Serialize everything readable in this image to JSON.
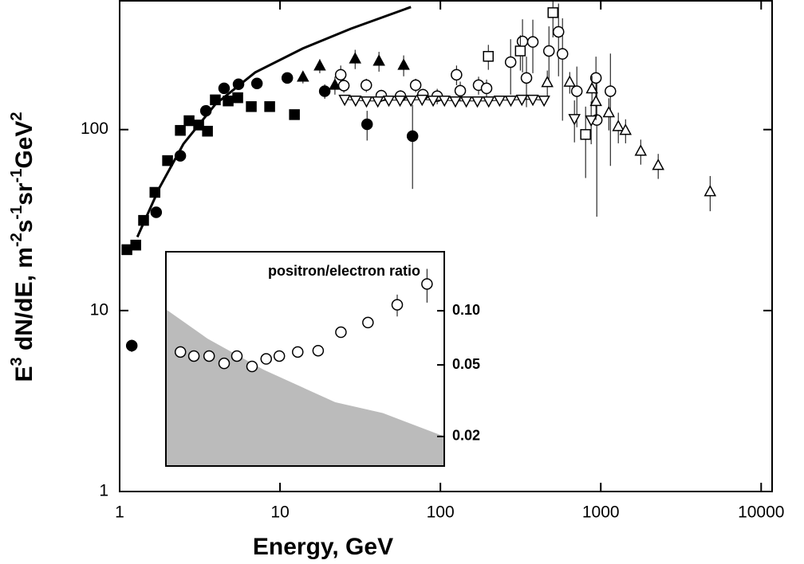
{
  "chart_data": [
    {
      "type": "scatter",
      "xlabel": "Energy, GeV",
      "ylabel": [
        "E",
        "3",
        " dN/dE, m",
        "-2",
        "s",
        "-1",
        "sr",
        "-1",
        "GeV",
        "2"
      ],
      "xscale": "log",
      "yscale": "log",
      "xlim": [
        1,
        11700
      ],
      "ylim": [
        1,
        515
      ],
      "xticks": [
        1,
        10,
        100,
        1000,
        10000
      ],
      "yticks": [
        1,
        10,
        100
      ],
      "series": [
        {
          "marker": "square",
          "fill": "#000000",
          "color": "#000000",
          "x": [
            1.11,
            1.26,
            1.41,
            1.66,
            1.99,
            2.39,
            2.71,
            3.11,
            3.53,
            3.95,
            4.75,
            5.45,
            6.62,
            8.62,
            12.3
          ],
          "values": [
            21.7,
            23.0,
            31.5,
            45.0,
            67.4,
            99,
            112,
            106,
            98,
            146,
            144,
            150,
            134,
            134,
            121
          ]
        },
        {
          "marker": "circle",
          "fill": "#000000",
          "color": "#000000",
          "x": [
            1.19,
            1.69,
            2.39,
            3.45,
            4.48,
            5.51,
            7.18,
            11.1,
            19.0,
            34.9,
            67
          ],
          "values": [
            6.4,
            34.9,
            71.6,
            127,
            169,
            178,
            180,
            193,
            163,
            107,
            92
          ],
          "errors": [
            0.5,
            2,
            4,
            8,
            10,
            10,
            10,
            12,
            15,
            20,
            45
          ]
        },
        {
          "marker": "triangle-up",
          "fill": "#000000",
          "color": "#000000",
          "x": [
            13.9,
            17.7,
            22.0,
            29.4,
            41.4,
            59.0
          ],
          "values": [
            195,
            225,
            176,
            246,
            239,
            227
          ],
          "errors": [
            15,
            20,
            20,
            30,
            30,
            30
          ]
        },
        {
          "marker": "circle",
          "fill": "#ffffff",
          "color": "#000000",
          "x": [
            23.9,
            25.0,
            34.5,
            42.8,
            56.4,
            70.1,
            77.8,
            95.5,
            126,
            133,
            173,
            194,
            274,
            325,
            344,
            377,
            475,
            545,
            577,
            709,
            933,
            944,
            1148
          ],
          "values": [
            201,
            175,
            176,
            154,
            153,
            176,
            156,
            153,
            201,
            164,
            176,
            169,
            236,
            307,
            193,
            305,
            272,
            347,
            262,
            163,
            193,
            113,
            163
          ],
          "errors": [
            25,
            15,
            15,
            12,
            12,
            15,
            12,
            15,
            25,
            20,
            20,
            20,
            80,
            100,
            60,
            100,
            100,
            150,
            150,
            60,
            60,
            80,
            100
          ]
        },
        {
          "marker": "square",
          "fill": "#ffffff",
          "color": "#000000",
          "x": [
            199,
            315,
            503,
            804
          ],
          "values": [
            254,
            272,
            443,
            94
          ],
          "errors": [
            40,
            60,
            120,
            40
          ]
        },
        {
          "marker": "triangle-up",
          "fill": "#ffffff",
          "color": "#000000",
          "x": [
            464,
            640,
            881,
            933,
            1122,
            1286,
            1427,
            1774,
            2280,
            4806
          ],
          "values": [
            182,
            183,
            168,
            143,
            124,
            104,
            99,
            76,
            63.4,
            45.4
          ],
          "errors": [
            30,
            25,
            30,
            30,
            25,
            20,
            15,
            12,
            10,
            10
          ]
        },
        {
          "marker": "triangle-down",
          "fill": "#ffffff",
          "color": "#000000",
          "line": true,
          "line_width": 1,
          "x": [
            25.3,
            29.6,
            34.6,
            40.7,
            47.7,
            56.0,
            65.5,
            76.9,
            90.1,
            106,
            124,
            145,
            170,
            200,
            234,
            275,
            322,
            377,
            443
          ],
          "values": [
            147,
            145.5,
            144,
            144,
            145.5,
            145.5,
            145.5,
            147,
            145.5,
            145.5,
            144,
            144,
            144,
            144,
            145.5,
            145.5,
            147,
            147,
            145.5
          ]
        },
        {
          "marker": "triangle-down",
          "fill": "#ffffff",
          "color": "#000000",
          "x": [
            685,
            871
          ],
          "values": [
            115,
            113
          ],
          "errors": [
            30,
            30
          ]
        },
        {
          "marker": "none",
          "color": "#000000",
          "line": true,
          "line_width": 3,
          "x": [
            1.29,
            1.77,
            2.5,
            3.95,
            7.0,
            13.9,
            27.7,
            65.5
          ],
          "values": [
            25.5,
            47.7,
            83.4,
            138,
            207,
            281,
            361,
            476
          ]
        }
      ]
    },
    {
      "type": "scatter",
      "title": "positron/electron ratio",
      "xscale": "log",
      "yscale": "log",
      "yaxis_side": "right",
      "xlim": [
        1.94,
        106
      ],
      "ylim": [
        0.0137,
        0.213
      ],
      "yticks": [
        0.02,
        0.05,
        {
          "value": 0.1,
          "label": "0.10"
        }
      ],
      "area": {
        "color": "#bbbbbb",
        "x": [
          1.94,
          3.53,
          7.9,
          22.1,
          43.8,
          106
        ],
        "values": [
          0.102,
          0.07,
          0.047,
          0.031,
          0.027,
          0.02
        ]
      },
      "series": [
        {
          "marker": "circle",
          "fill": "#ffffff",
          "color": "#000000",
          "x": [
            2.39,
            2.9,
            3.61,
            4.48,
            5.38,
            6.69,
            8.2,
            9.9,
            12.9,
            17.3,
            24.0,
            35.4,
            53.9,
            82.7
          ],
          "values": [
            0.059,
            0.056,
            0.056,
            0.051,
            0.056,
            0.049,
            0.054,
            0.056,
            0.059,
            0.06,
            0.076,
            0.086,
            0.108,
            0.141
          ],
          "errors": [
            0.002,
            0.002,
            0.002,
            0.002,
            0.002,
            0.002,
            0.002,
            0.002,
            0.002,
            0.003,
            0.004,
            0.006,
            0.015,
            0.03
          ]
        }
      ]
    }
  ]
}
